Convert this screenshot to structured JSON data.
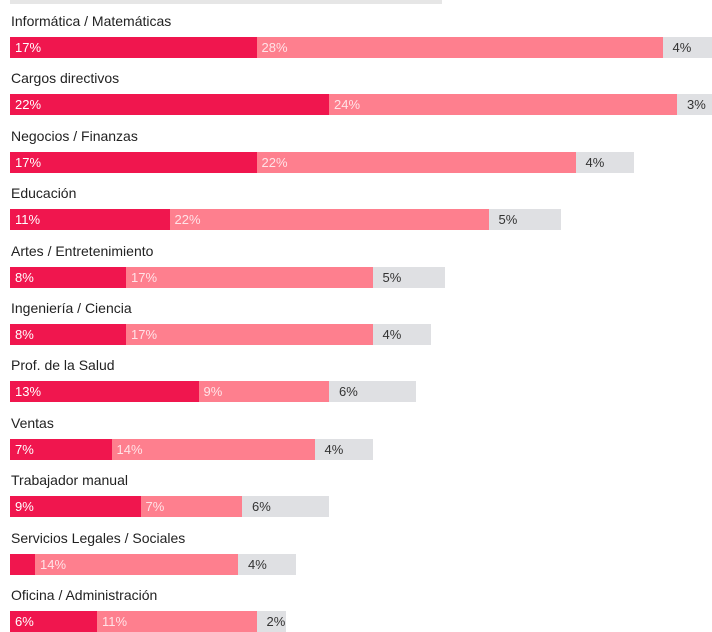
{
  "chart_data": {
    "type": "bar",
    "orientation": "horizontal",
    "stacked": true,
    "categories": [
      "Informática / Matemáticas",
      "Cargos directivos",
      "Negocios / Finanzas",
      "Educación",
      "Artes / Entretenimiento",
      "Ingeniería / Ciencia",
      "Prof. de la Salud",
      "Ventas",
      "Trabajador manual",
      "Servicios Legales / Sociales",
      "Oficina / Administración"
    ],
    "series": [
      {
        "values": [
          17,
          22,
          17,
          11,
          8,
          8,
          13,
          7,
          9,
          null,
          6
        ],
        "labels": [
          "17%",
          "22%",
          "17%",
          "11%",
          "8%",
          "8%",
          "13%",
          "7%",
          "9%",
          "",
          "6%"
        ],
        "color": "#f0164e",
        "label_color": "#ffffff"
      },
      {
        "values": [
          28,
          24,
          22,
          22,
          17,
          17,
          9,
          14,
          7,
          14,
          11
        ],
        "labels": [
          "28%",
          "24%",
          "22%",
          "22%",
          "17%",
          "17%",
          "9%",
          "14%",
          "7%",
          "14%",
          "11%"
        ],
        "color": "#fe7f8e",
        "label_color": "#ffe3e7"
      },
      {
        "values": [
          4,
          3,
          4,
          5,
          5,
          4,
          6,
          4,
          6,
          4,
          2
        ],
        "labels": [
          "4%",
          "3%",
          "4%",
          "5%",
          "5%",
          "4%",
          "6%",
          "4%",
          "6%",
          "4%",
          "2%"
        ],
        "color": "#dfe0e3",
        "label_color": "#333333"
      }
    ],
    "title": "",
    "xlabel": "",
    "ylabel": "",
    "xlim": [
      0,
      50
    ],
    "grid": false,
    "legend": "none"
  }
}
